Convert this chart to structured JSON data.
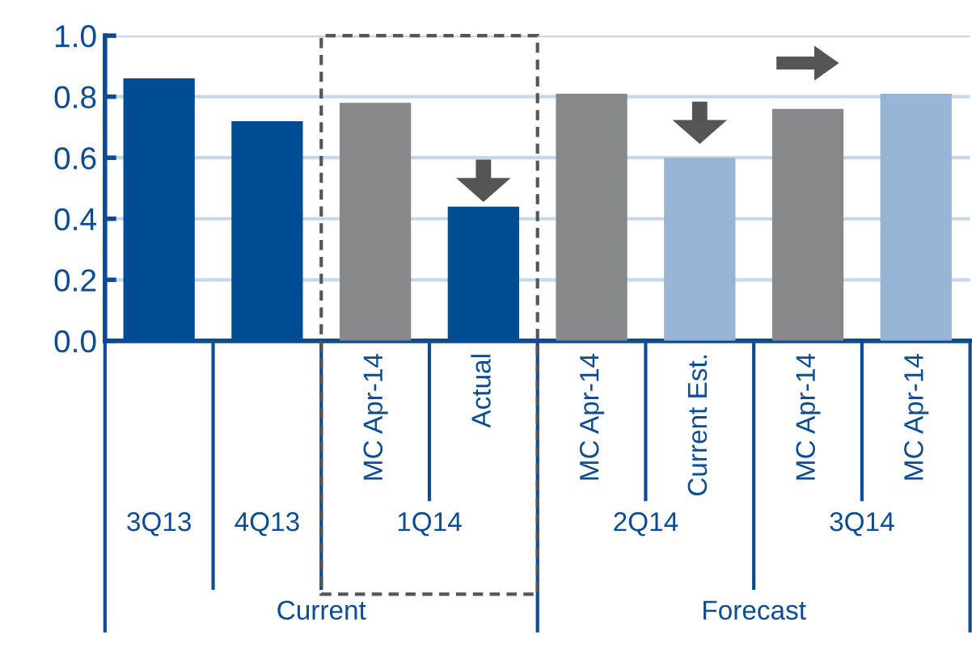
{
  "chart_data": {
    "type": "bar",
    "categories": [
      null,
      null,
      "MC Apr-14",
      "Actual",
      "MC Apr-14",
      "Current Est.",
      "MC Apr-14",
      "MC Apr-14"
    ],
    "values": [
      0.86,
      0.72,
      0.78,
      0.44,
      0.81,
      0.6,
      0.76,
      0.81
    ],
    "colors": [
      "#004c93",
      "#004c93",
      "#87888a",
      "#004c93",
      "#87888a",
      "#98b4d4",
      "#87888a",
      "#98b4d4"
    ],
    "ylim": [
      0,
      1.0
    ],
    "yticks": [
      {
        "value": 0,
        "label": "0.0"
      },
      {
        "value": 0.2,
        "label": "0.2"
      },
      {
        "value": 0.4,
        "label": "0.4"
      },
      {
        "value": 0.6,
        "label": "0.6"
      },
      {
        "value": 0.8,
        "label": "0.8"
      },
      {
        "value": 1.0,
        "label": "1.0"
      }
    ],
    "grid": "y",
    "annotations": [
      "3Q13",
      "4Q13",
      "1Q14",
      "2Q14",
      "3Q14",
      "Current",
      "Forecast"
    ]
  }
}
